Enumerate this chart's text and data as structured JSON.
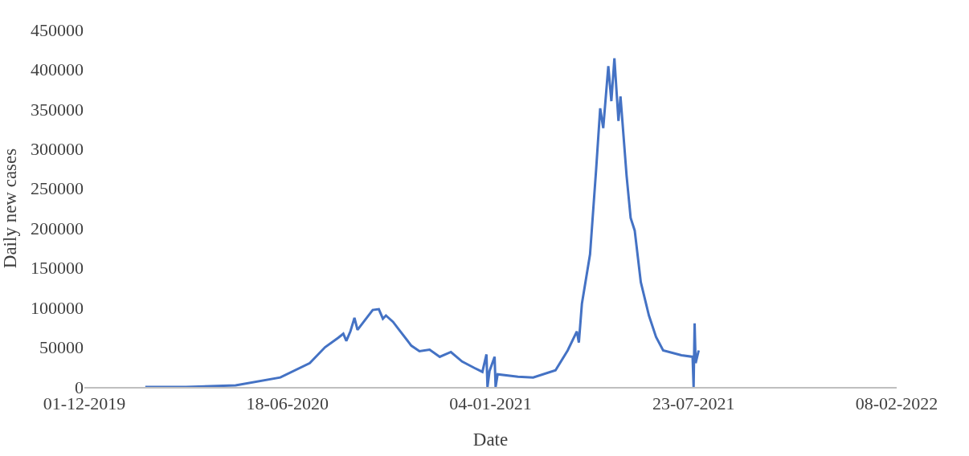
{
  "chart_data": {
    "type": "line",
    "xlabel": "Date",
    "ylabel": "Daily new cases",
    "x": [
      "2020-01-30",
      "2020-03-10",
      "2020-04-28",
      "2020-06-11",
      "2020-07-10",
      "2020-07-25",
      "2020-08-07",
      "2020-08-12",
      "2020-08-15",
      "2020-08-19",
      "2020-08-23",
      "2020-08-26",
      "2020-09-10",
      "2020-09-16",
      "2020-09-20",
      "2020-09-23",
      "2020-09-30",
      "2020-10-06",
      "2020-10-18",
      "2020-10-26",
      "2020-11-05",
      "2020-11-15",
      "2020-11-26",
      "2020-12-07",
      "2020-12-19",
      "2020-12-27",
      "2020-12-31",
      "2021-01-01",
      "2021-01-03",
      "2021-01-08",
      "2021-01-09",
      "2021-01-11",
      "2021-01-31",
      "2021-02-15",
      "2021-03-09",
      "2021-03-21",
      "2021-03-30",
      "2021-04-01",
      "2021-04-04",
      "2021-04-12",
      "2021-04-18",
      "2021-04-22",
      "2021-04-25",
      "2021-04-30",
      "2021-05-03",
      "2021-05-06",
      "2021-05-10",
      "2021-05-12",
      "2021-05-18",
      "2021-05-22",
      "2021-05-26",
      "2021-06-01",
      "2021-06-09",
      "2021-06-16",
      "2021-06-23",
      "2021-07-11",
      "2021-07-22",
      "2021-07-23",
      "2021-07-24",
      "2021-07-25",
      "2021-07-28"
    ],
    "series": [
      {
        "color": "#4472c4",
        "values": [
          0,
          0,
          2000,
          12000,
          30000,
          50000,
          62000,
          67000,
          58000,
          70000,
          87000,
          72000,
          97000,
          98000,
          86000,
          90000,
          82000,
          72000,
          52000,
          45000,
          47000,
          38000,
          44000,
          32000,
          24000,
          19000,
          41000,
          0,
          20000,
          38000,
          0,
          16000,
          13000,
          12000,
          21000,
          46000,
          70000,
          56000,
          105000,
          167000,
          274000,
          351000,
          326000,
          404000,
          360000,
          414000,
          335000,
          366000,
          266000,
          213000,
          197000,
          132000,
          90000,
          63000,
          46000,
          40000,
          38000,
          0,
          80000,
          30000,
          46000
        ]
      }
    ],
    "xlim": [
      "2019-12-01",
      "2022-02-08"
    ],
    "xticks": [
      {
        "value": "2019-12-01",
        "label": "01-12-2019"
      },
      {
        "value": "2020-06-18",
        "label": "18-06-2020"
      },
      {
        "value": "2021-01-04",
        "label": "04-01-2021"
      },
      {
        "value": "2021-07-23",
        "label": "23-07-2021"
      },
      {
        "value": "2022-02-08",
        "label": "08-02-2022"
      }
    ],
    "ylim": [
      0,
      450000
    ],
    "yticks": [
      0,
      50000,
      100000,
      150000,
      200000,
      250000,
      300000,
      350000,
      400000,
      450000
    ],
    "grid": false,
    "marker": "none",
    "line_style": "solid"
  }
}
